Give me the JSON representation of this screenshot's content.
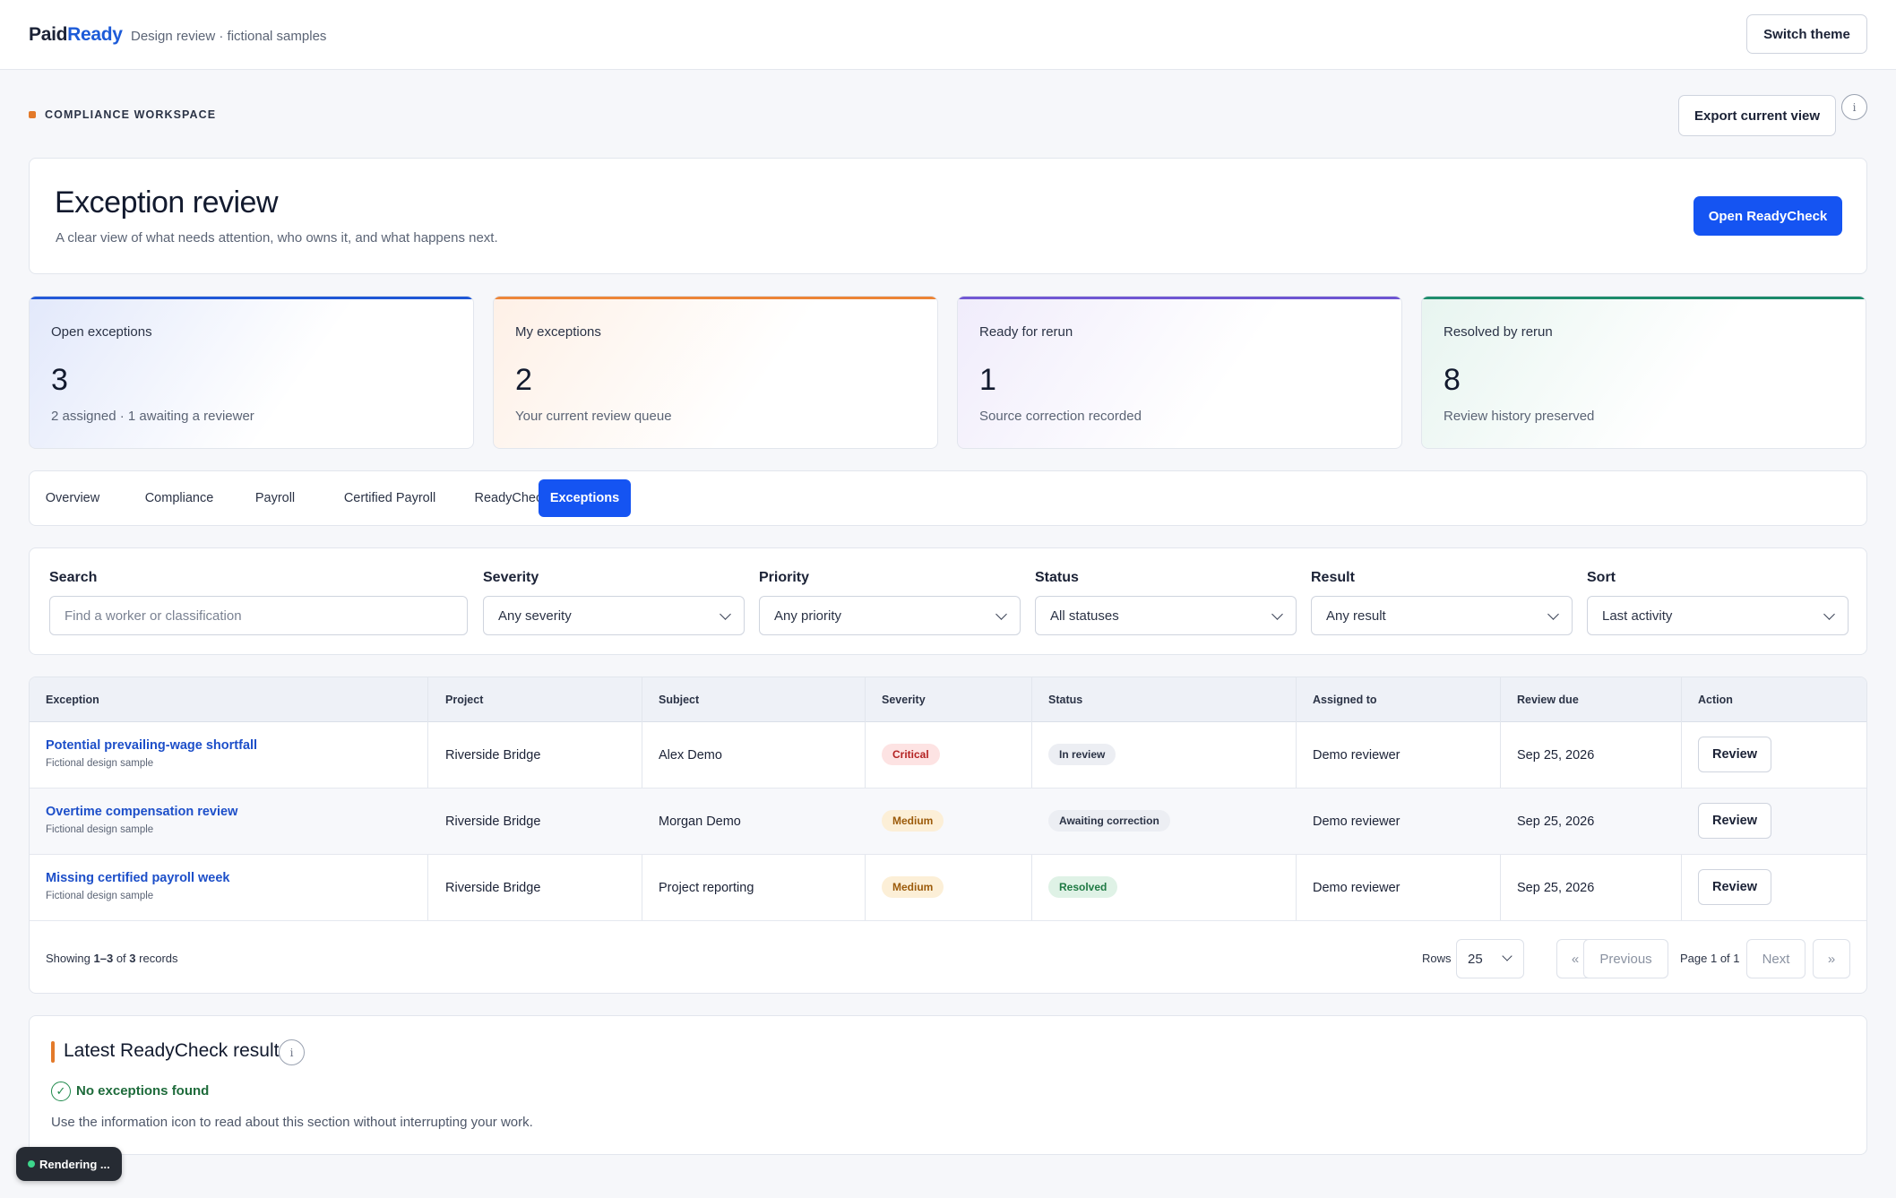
{
  "header": {
    "brand_part1": "Paid",
    "brand_part2": "Ready",
    "subtitle": "Design review · fictional samples",
    "switch_theme_label": "Switch theme"
  },
  "workspace": {
    "label": "COMPLIANCE WORKSPACE",
    "export_label": "Export current view",
    "info_icon": "i"
  },
  "hero": {
    "title": "Exception review",
    "subtitle": "A clear view of what needs attention, who owns it, and what happens next.",
    "primary_button": "Open ReadyCheck"
  },
  "stats": [
    {
      "label": "Open exceptions",
      "value": "3",
      "note": "2 assigned · 1 awaiting a reviewer",
      "accent": "#1f57d6"
    },
    {
      "label": "My exceptions",
      "value": "2",
      "note": "Your current review queue",
      "accent": "#ec8436"
    },
    {
      "label": "Ready for rerun",
      "value": "1",
      "note": "Source correction recorded",
      "accent": "#6e55d2"
    },
    {
      "label": "Resolved by rerun",
      "value": "8",
      "note": "Review history preserved",
      "accent": "#1b8a6a"
    }
  ],
  "tabs": [
    "Overview",
    "Compliance",
    "Payroll",
    "Certified Payroll",
    "ReadyCheck",
    "Exceptions"
  ],
  "active_tab": "Exceptions",
  "filters": {
    "search": {
      "label": "Search",
      "placeholder": "Find a worker or classification"
    },
    "severity": {
      "label": "Severity",
      "value": "Any severity"
    },
    "priority": {
      "label": "Priority",
      "value": "Any priority"
    },
    "status": {
      "label": "Status",
      "value": "All statuses"
    },
    "result": {
      "label": "Result",
      "value": "Any result"
    },
    "sort": {
      "label": "Sort",
      "value": "Last activity"
    }
  },
  "table": {
    "columns": [
      "Exception",
      "Project",
      "Subject",
      "Severity",
      "Status",
      "Assigned to",
      "Review due",
      "Action"
    ],
    "rows": [
      {
        "title": "Potential prevailing-wage shortfall",
        "sub": "Fictional design sample",
        "project": "Riverside Bridge",
        "subject": "Alex Demo",
        "severity": "Critical",
        "status": "In review",
        "assigned": "Demo reviewer",
        "due": "Sep 25, 2026",
        "action": "Review"
      },
      {
        "title": "Overtime compensation review",
        "sub": "Fictional design sample",
        "project": "Riverside Bridge",
        "subject": "Morgan Demo",
        "severity": "Medium",
        "status": "Awaiting correction",
        "assigned": "Demo reviewer",
        "due": "Sep 25, 2026",
        "action": "Review"
      },
      {
        "title": "Missing certified payroll week",
        "sub": "Fictional design sample",
        "project": "Riverside Bridge",
        "subject": "Project reporting",
        "severity": "Medium",
        "status": "Resolved",
        "assigned": "Demo reviewer",
        "due": "Sep 25, 2026",
        "action": "Review"
      }
    ],
    "footer": {
      "showing_prefix": "Showing",
      "showing_range": "1–3",
      "showing_of": "of",
      "showing_total": "3",
      "showing_suffix": "records",
      "rows_label": "Rows",
      "rows_value": "25",
      "first": "«",
      "previous": "Previous",
      "page_text": "Page 1 of 1",
      "next": "Next",
      "last": "»"
    }
  },
  "latest": {
    "title": "Latest ReadyCheck result",
    "result": "No exceptions found",
    "note": "Use the information icon to read about this section without interrupting your work.",
    "check_glyph": "✓"
  },
  "render_status": "Rendering ..."
}
